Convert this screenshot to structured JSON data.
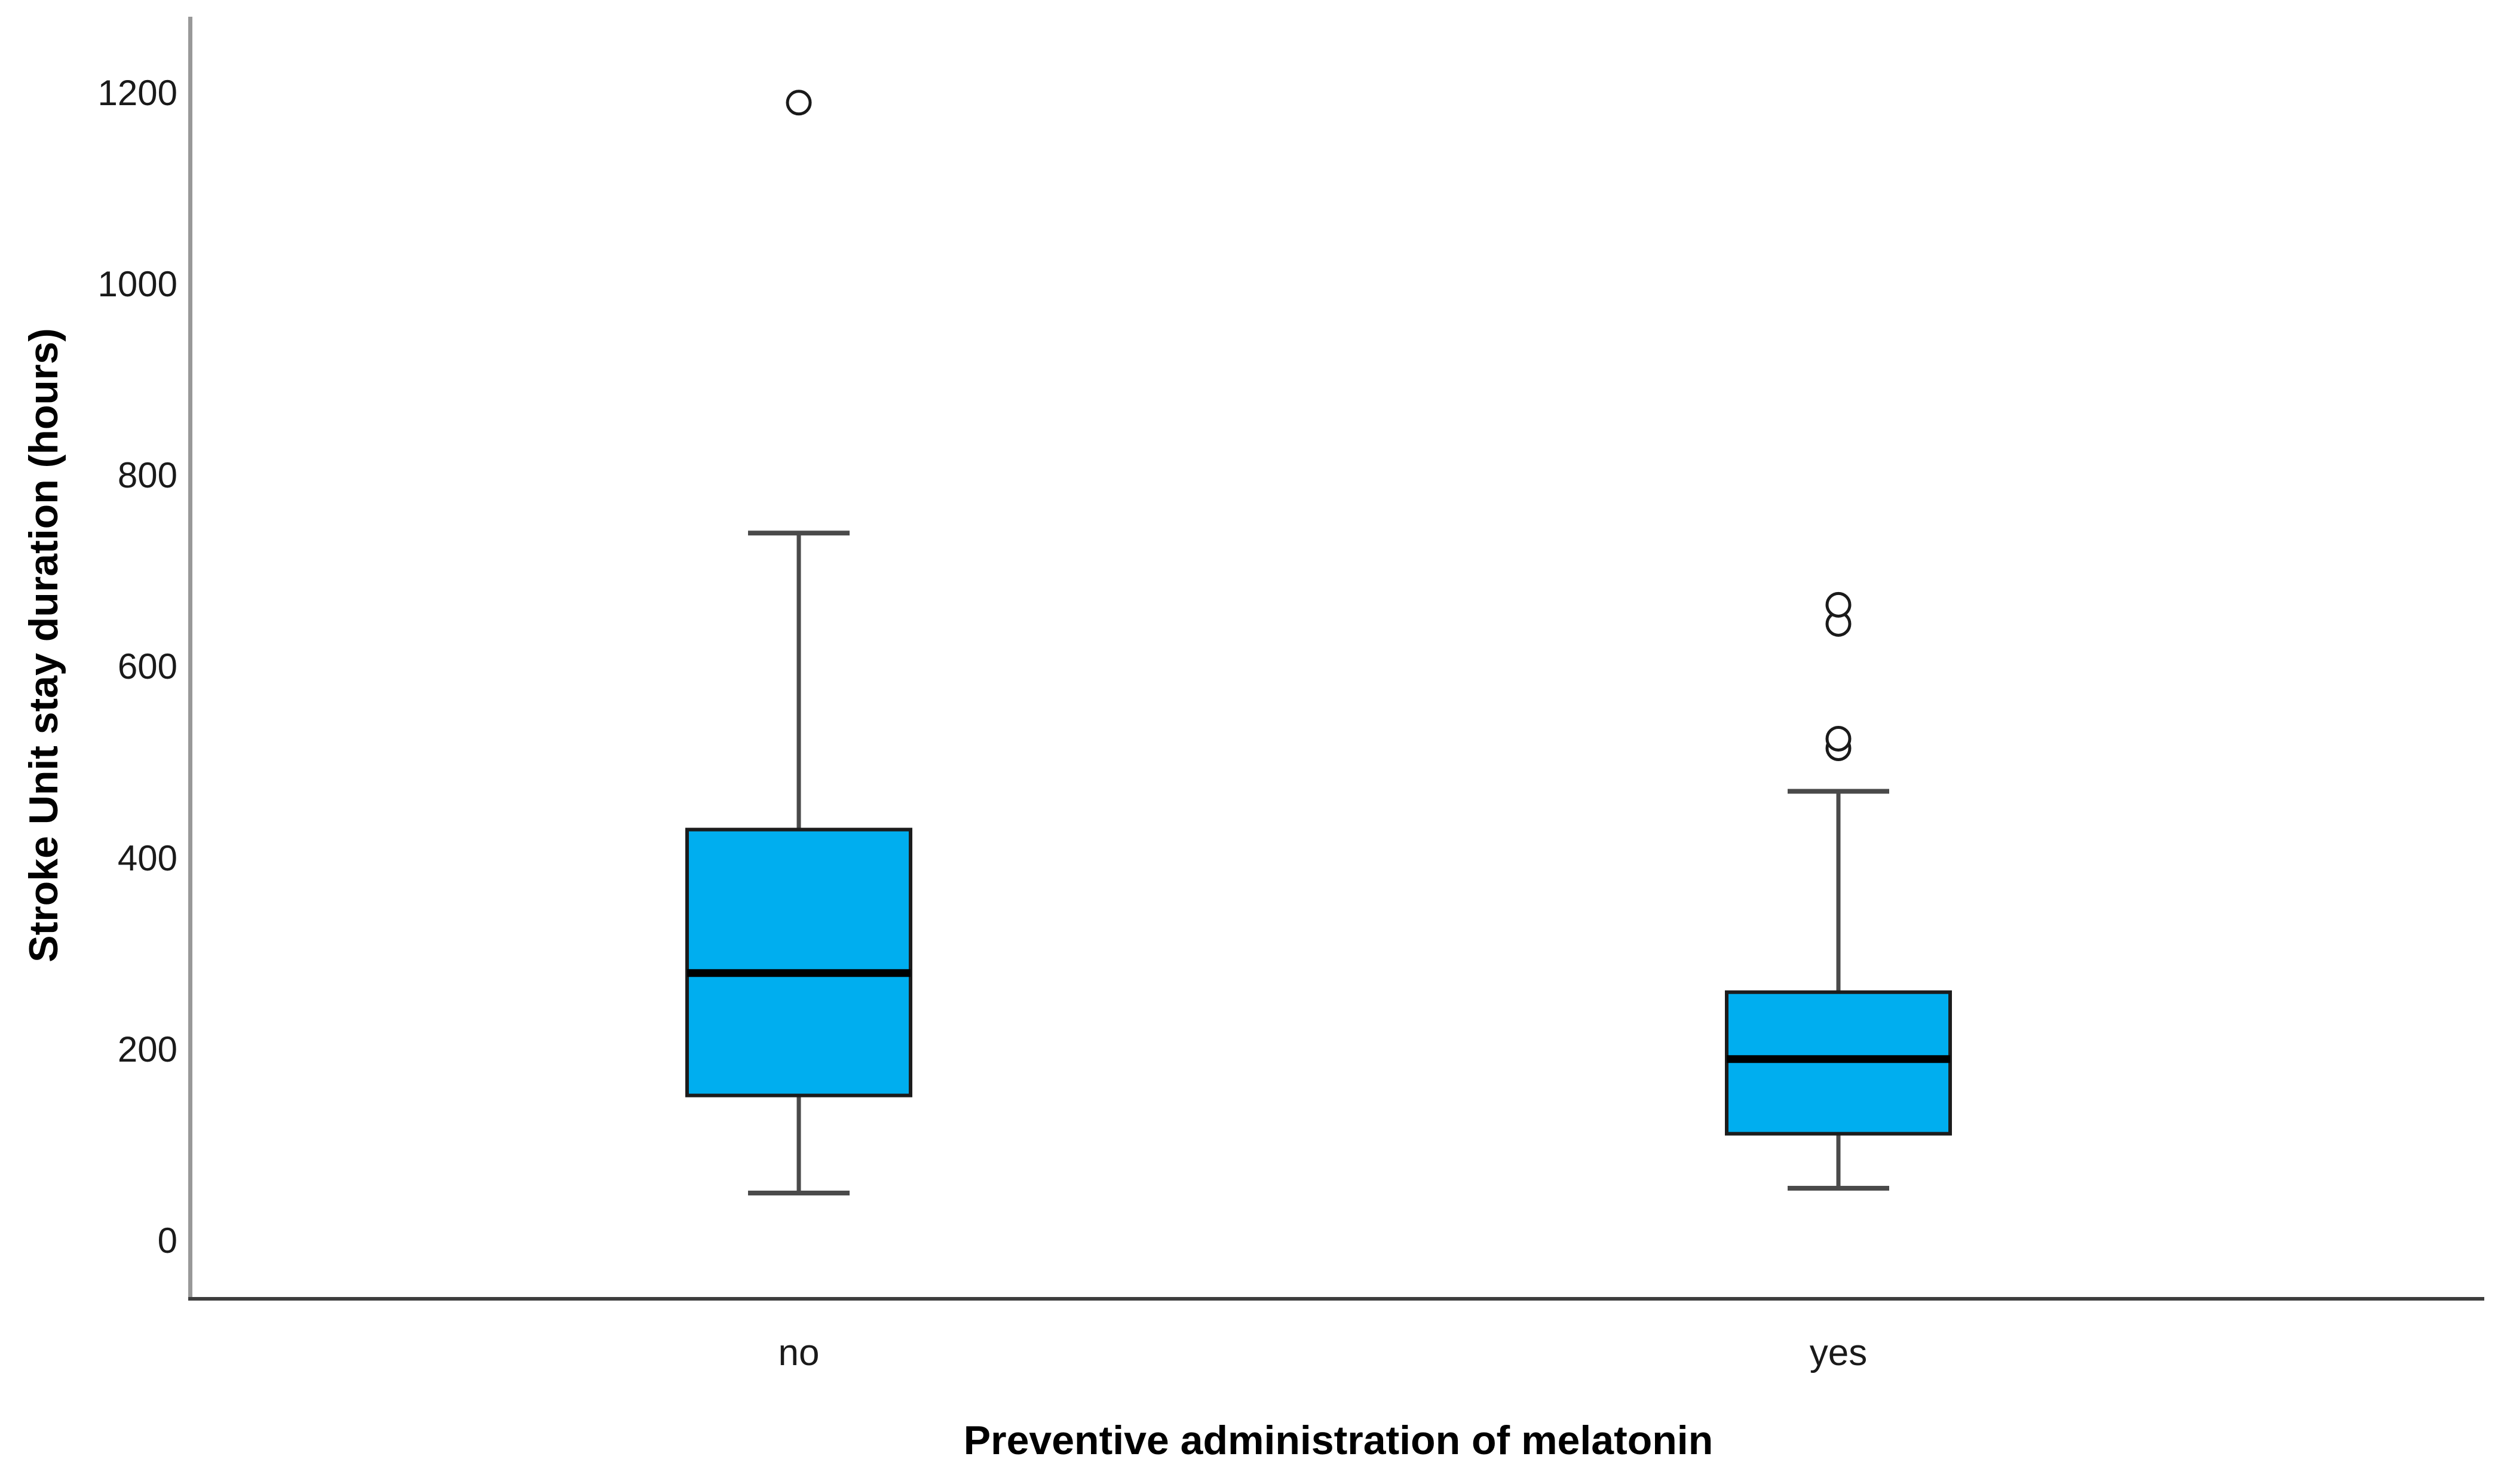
{
  "chart_data": {
    "type": "boxplot",
    "title": "",
    "xlabel": "Preventive administration of melatonin",
    "ylabel": "Stroke Unit stay duration (hours)",
    "ylim": [
      -60,
      1260
    ],
    "y_ticks": [
      0,
      200,
      400,
      600,
      800,
      1000,
      1200
    ],
    "categories": [
      "no",
      "yes"
    ],
    "grid": false,
    "legend_position": "none",
    "series": [
      {
        "category": "no",
        "whisker_low": 50,
        "q1": 152,
        "median": 280,
        "q3": 430,
        "whisker_high": 740,
        "outliers": [
          1190
        ]
      },
      {
        "category": "yes",
        "whisker_low": 55,
        "q1": 112,
        "median": 190,
        "q3": 260,
        "whisker_high": 470,
        "outliers": [
          515,
          525,
          645,
          665
        ]
      }
    ]
  },
  "axis": {
    "x_title": "Preventive administration of melatonin",
    "y_title": "Stroke Unit stay duration (hours)",
    "tick_labels": [
      "0",
      "200",
      "400",
      "600",
      "800",
      "1000",
      "1200"
    ],
    "category_labels": [
      "no",
      "yes"
    ]
  },
  "colors": {
    "background": "#ffffff",
    "box_fill": "#00AEEF",
    "box_border": "#1c1c1c",
    "median_line": "#000000",
    "whisker_line": "#4a4a4a",
    "cap_line": "#4a4a4a",
    "y_axis_line": "#999999",
    "x_axis_line": "#3d3d3d",
    "outlier_stroke": "#1a1a1a",
    "outlier_fill": "#ffffff",
    "text": "#1a1a1a"
  }
}
